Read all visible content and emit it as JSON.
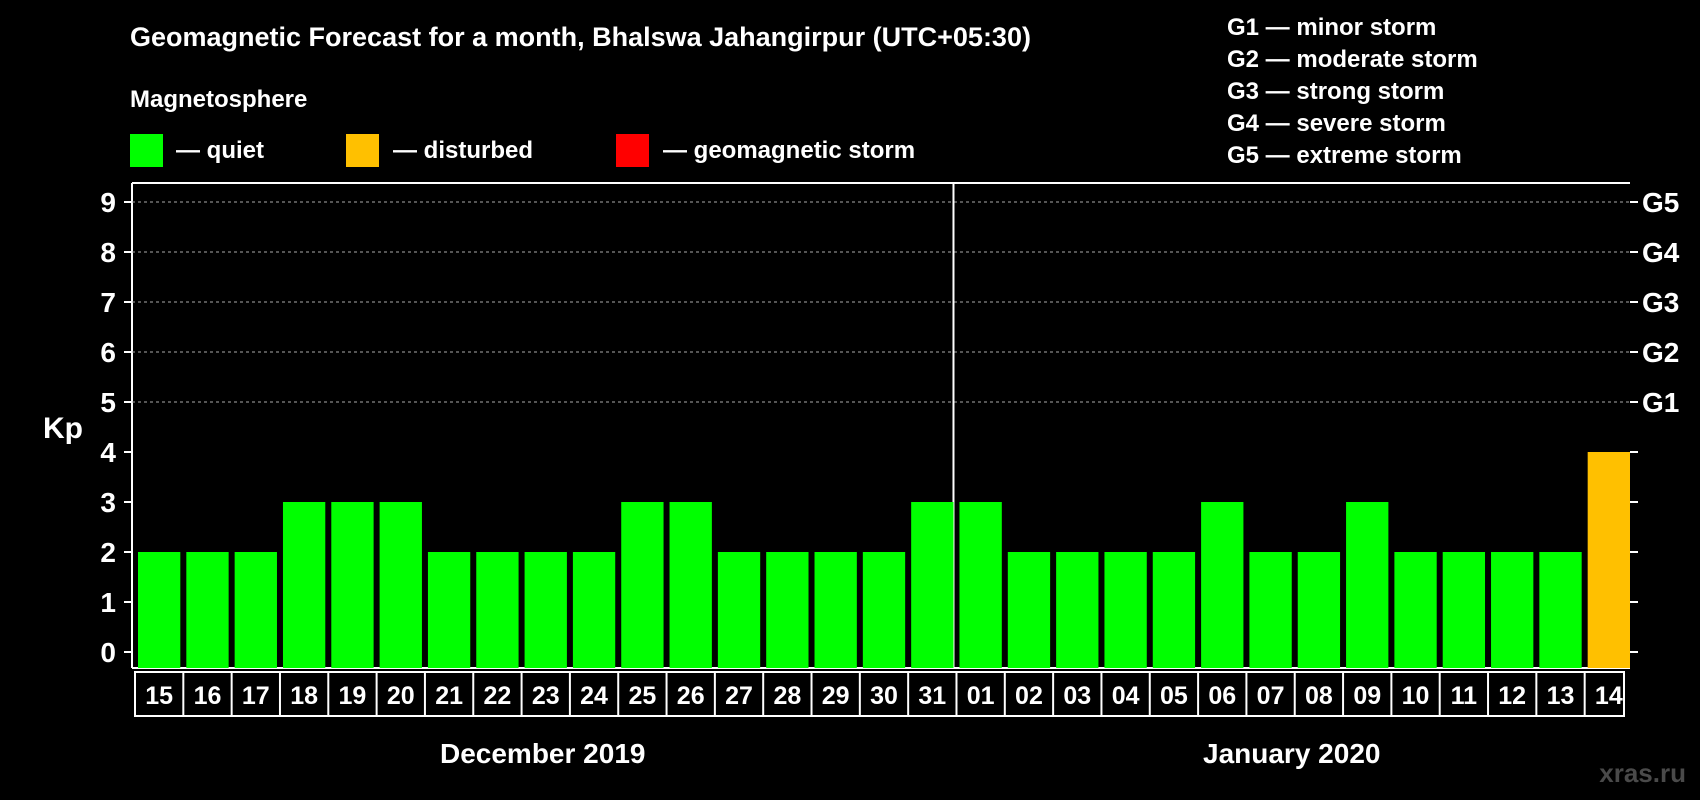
{
  "title": "Geomagnetic Forecast for a month, Bhalswa Jahangirpur (UTC+05:30)",
  "legend": {
    "heading": "Magnetosphere",
    "items": [
      {
        "label": "— quiet",
        "color": "#00ff00"
      },
      {
        "label": "— disturbed",
        "color": "#ffc000"
      },
      {
        "label": "— geomagnetic storm",
        "color": "#ff0000"
      }
    ]
  },
  "storm_scale": [
    "G1 — minor storm",
    "G2 — moderate storm",
    "G3 — strong storm",
    "G4 — severe storm",
    "G5 — extreme storm"
  ],
  "watermark": "xras.ru",
  "chart_data": {
    "type": "bar",
    "title": "Geomagnetic Forecast for a month, Bhalswa Jahangirpur (UTC+05:30)",
    "ylabel": "Kp",
    "ylim": [
      0,
      9
    ],
    "yticks": [
      "0",
      "1",
      "2",
      "3",
      "4",
      "5",
      "6",
      "7",
      "8",
      "9"
    ],
    "right_axis": [
      {
        "kp": 5,
        "label": "G1"
      },
      {
        "kp": 6,
        "label": "G2"
      },
      {
        "kp": 7,
        "label": "G3"
      },
      {
        "kp": 8,
        "label": "G4"
      },
      {
        "kp": 9,
        "label": "G5"
      }
    ],
    "months": [
      {
        "label": "December 2019",
        "days": 17
      },
      {
        "label": "January 2020",
        "days": 14
      }
    ],
    "categories": [
      "15",
      "16",
      "17",
      "18",
      "19",
      "20",
      "21",
      "22",
      "23",
      "24",
      "25",
      "26",
      "27",
      "28",
      "29",
      "30",
      "31",
      "01",
      "02",
      "03",
      "04",
      "05",
      "06",
      "07",
      "08",
      "09",
      "10",
      "11",
      "12",
      "13",
      "14"
    ],
    "values": [
      2,
      2,
      2,
      3,
      3,
      3,
      2,
      2,
      2,
      2,
      3,
      3,
      2,
      2,
      2,
      2,
      3,
      3,
      2,
      2,
      2,
      2,
      3,
      2,
      2,
      3,
      2,
      2,
      2,
      2,
      4
    ],
    "colors": [
      "#00ff00",
      "#00ff00",
      "#00ff00",
      "#00ff00",
      "#00ff00",
      "#00ff00",
      "#00ff00",
      "#00ff00",
      "#00ff00",
      "#00ff00",
      "#00ff00",
      "#00ff00",
      "#00ff00",
      "#00ff00",
      "#00ff00",
      "#00ff00",
      "#00ff00",
      "#00ff00",
      "#00ff00",
      "#00ff00",
      "#00ff00",
      "#00ff00",
      "#00ff00",
      "#00ff00",
      "#00ff00",
      "#00ff00",
      "#00ff00",
      "#00ff00",
      "#00ff00",
      "#00ff00",
      "#ffc000"
    ],
    "grid": true
  }
}
